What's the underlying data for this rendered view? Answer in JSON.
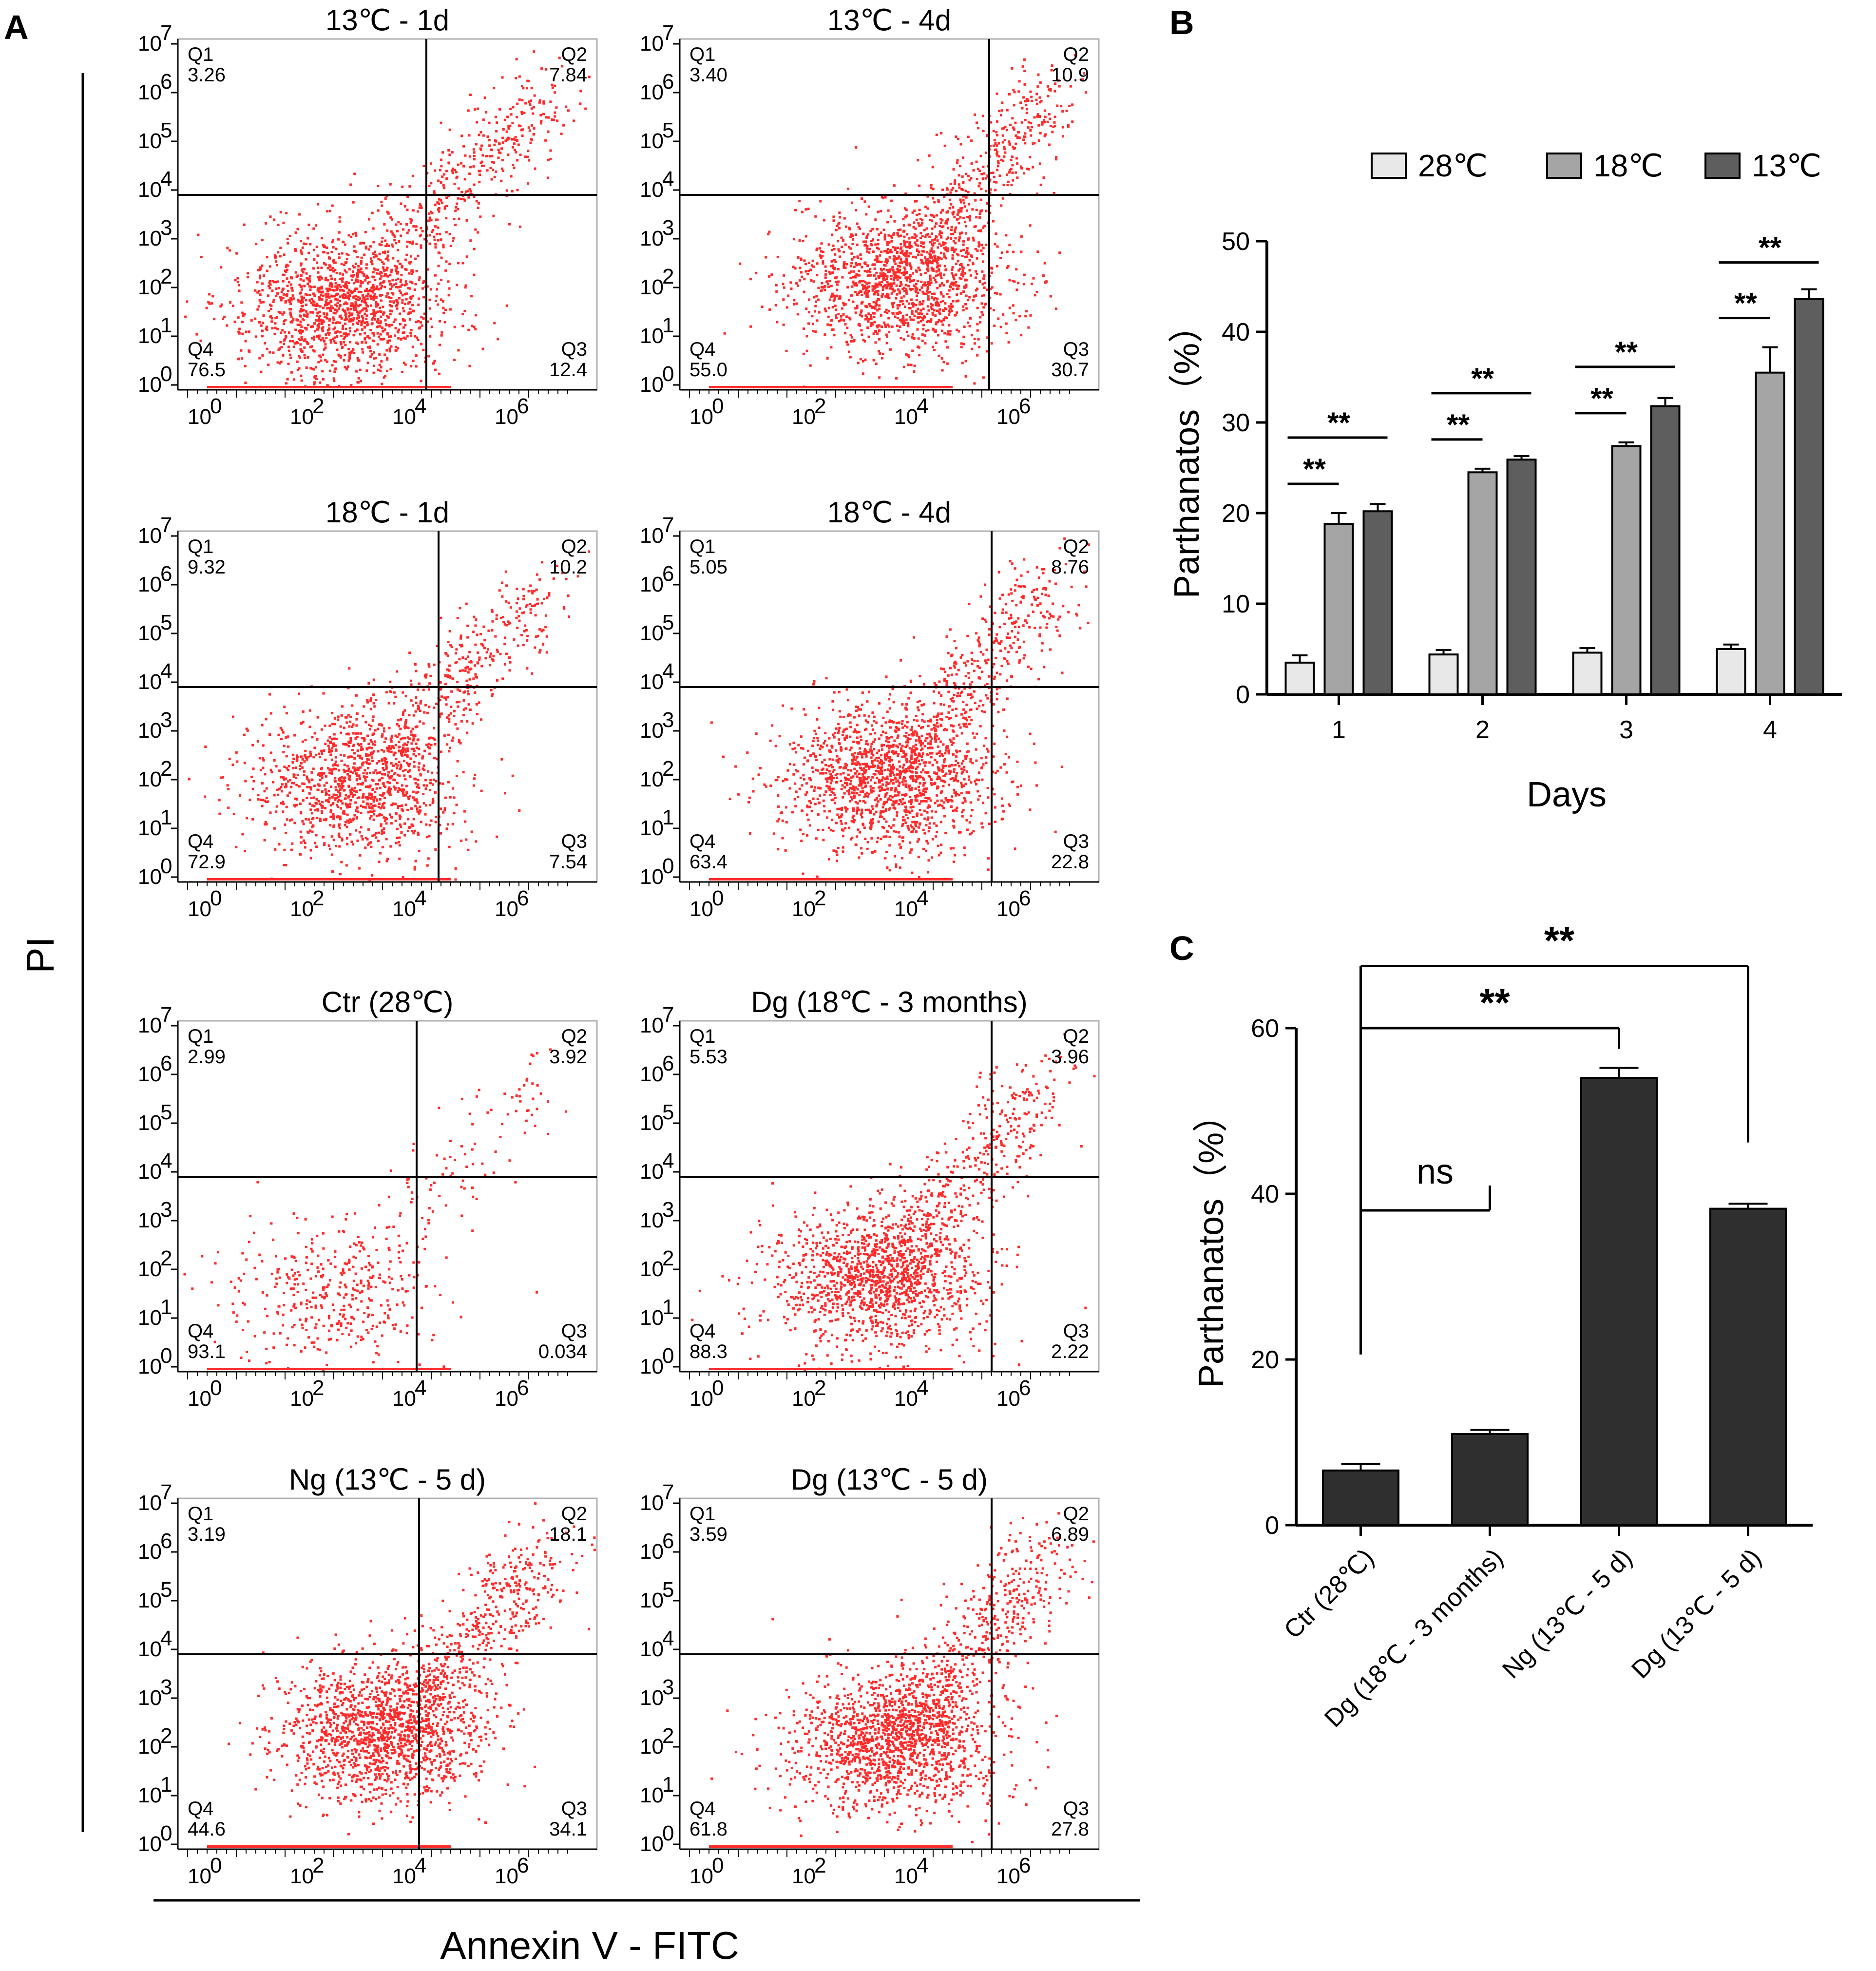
{
  "panel_labels": {
    "a": "A",
    "b": "B",
    "c": "C"
  },
  "panel_a": {
    "y_axis_label": "PI",
    "x_axis_label": "Annexin V - FITC",
    "tick_labels": [
      "10",
      "10",
      "10",
      "10",
      "10"
    ],
    "y_tick_exponents": [
      "0",
      "1",
      "2",
      "3",
      "4",
      "5",
      "6",
      "7"
    ],
    "x_tick_exponents": [
      "0",
      "2",
      "4",
      "6"
    ],
    "quadrant_names": [
      "Q1",
      "Q2",
      "Q3",
      "Q4"
    ],
    "dot_color": "#ff2a2a",
    "plots": [
      {
        "title": "13℃ - 1d",
        "q1": "3.26",
        "q2": "7.84",
        "q3": "12.4",
        "q4": "76.5"
      },
      {
        "title": "13℃ - 4d",
        "q1": "3.40",
        "q2": "10.9",
        "q3": "30.7",
        "q4": "55.0"
      },
      {
        "title": "18℃ - 1d",
        "q1": "9.32",
        "q2": "10.2",
        "q3": "7.54",
        "q4": "72.9"
      },
      {
        "title": "18℃ - 4d",
        "q1": "5.05",
        "q2": "8.76",
        "q3": "22.8",
        "q4": "63.4"
      },
      {
        "title": "Ctr (28℃)",
        "q1": "2.99",
        "q2": "3.92",
        "q3": "0.034",
        "q4": "93.1"
      },
      {
        "title": "Dg (18℃ - 3 months)",
        "q1": "5.53",
        "q2": "3.96",
        "q3": "2.22",
        "q4": "88.3"
      },
      {
        "title": "Ng (13℃ - 5 d)",
        "q1": "3.19",
        "q2": "18.1",
        "q3": "34.1",
        "q4": "44.6"
      },
      {
        "title": "Dg (13℃ - 5 d)",
        "q1": "3.59",
        "q2": "6.89",
        "q3": "27.8",
        "q4": "61.8"
      }
    ]
  },
  "chart_data": [
    {
      "type": "bar",
      "title": "",
      "xlabel": "Days",
      "ylabel": "Parthanatos（%）",
      "ylim": [
        0,
        50
      ],
      "yticks": [
        "0",
        "10",
        "20",
        "30",
        "40",
        "50"
      ],
      "categories": [
        "1",
        "2",
        "3",
        "4"
      ],
      "series": [
        {
          "name": "28℃",
          "color": "#e8e8e8",
          "values": [
            3.5,
            4.4,
            4.6,
            5.0
          ],
          "errors": [
            0.8,
            0.5,
            0.5,
            0.5
          ]
        },
        {
          "name": "18℃",
          "color": "#a5a5a5",
          "values": [
            18.8,
            24.5,
            27.4,
            35.5
          ],
          "errors": [
            1.2,
            0.4,
            0.4,
            2.8
          ]
        },
        {
          "name": "13℃",
          "color": "#5e5e5e",
          "values": [
            20.2,
            25.9,
            31.8,
            43.6
          ],
          "errors": [
            0.8,
            0.4,
            0.9,
            1.1
          ]
        }
      ],
      "significance": [
        {
          "day": "1",
          "label": "**"
        },
        {
          "day": "1",
          "label": "**"
        },
        {
          "day": "2",
          "label": "**"
        },
        {
          "day": "2",
          "label": "**"
        },
        {
          "day": "3",
          "label": "**"
        },
        {
          "day": "3",
          "label": "**"
        },
        {
          "day": "4",
          "label": "**"
        },
        {
          "day": "4",
          "label": "**"
        }
      ]
    },
    {
      "type": "bar",
      "title": "",
      "xlabel": "",
      "ylabel": "Parthanatos（%）",
      "ylim": [
        0,
        60
      ],
      "yticks": [
        "0",
        "20",
        "40",
        "60"
      ],
      "categories": [
        "Ctr (28℃)",
        "Dg (18℃ - 3 months)",
        "Ng (13℃ - 5 d)",
        "Dg (13℃ - 5 d)"
      ],
      "values": [
        6.6,
        11.0,
        54.0,
        38.2
      ],
      "errors": [
        0.8,
        0.5,
        1.2,
        0.6
      ],
      "color": "#2f2f2f",
      "significance": [
        {
          "compare": "Ctr (28℃) vs Dg (18℃ - 3 months)",
          "label": "ns"
        },
        {
          "compare": "Ctr (28℃) vs Ng (13℃ - 5 d)",
          "label": "**"
        },
        {
          "compare": "Ctr (28℃) vs Dg (13℃ - 5 d)",
          "label": "**"
        }
      ]
    }
  ]
}
